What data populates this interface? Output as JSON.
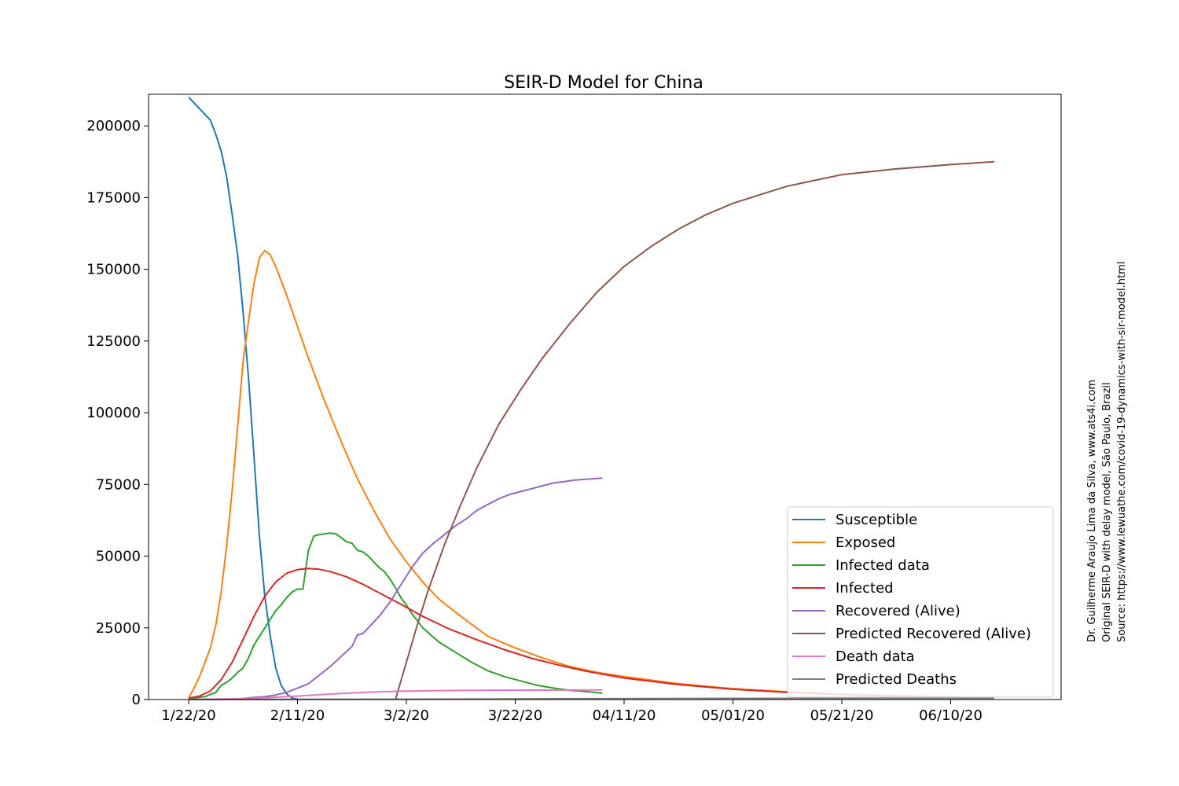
{
  "chart_data": {
    "type": "line",
    "title": "SEIR-D Model for China",
    "xlabel": "",
    "ylabel": "",
    "x_axis": {
      "type": "date",
      "start": "2020-01-22",
      "end": "2020-06-30",
      "tick_dates": [
        "2020-01-22",
        "2020-02-11",
        "2020-03-02",
        "2020-03-22",
        "2020-04-11",
        "2020-05-01",
        "2020-05-21",
        "2020-06-10"
      ],
      "tick_labels": [
        "1/22/20",
        "2/11/20",
        "3/2/20",
        "3/22/20",
        "04/11/20",
        "05/01/20",
        "05/21/20",
        "06/10/20"
      ]
    },
    "y_axis": {
      "range": [
        0,
        211000
      ],
      "ticks": [
        0,
        25000,
        50000,
        75000,
        100000,
        125000,
        150000,
        175000,
        200000
      ],
      "tick_labels": [
        "0",
        "25000",
        "50000",
        "75000",
        "100000",
        "125000",
        "150000",
        "175000",
        "200000"
      ]
    },
    "grid": false,
    "legend": {
      "placement": "lower-right"
    },
    "series": [
      {
        "name": "Susceptible",
        "color": "#1f77b4",
        "points": [
          [
            "2020-01-22",
            210000
          ],
          [
            "2020-01-24",
            206000
          ],
          [
            "2020-01-26",
            202000
          ],
          [
            "2020-01-27",
            197000
          ],
          [
            "2020-01-28",
            191000
          ],
          [
            "2020-01-29",
            182000
          ],
          [
            "2020-01-30",
            169000
          ],
          [
            "2020-01-31",
            155000
          ],
          [
            "2020-02-01",
            135000
          ],
          [
            "2020-02-02",
            112000
          ],
          [
            "2020-02-03",
            85000
          ],
          [
            "2020-02-04",
            57000
          ],
          [
            "2020-02-05",
            36000
          ],
          [
            "2020-02-06",
            22000
          ],
          [
            "2020-02-07",
            11000
          ],
          [
            "2020-02-08",
            5000
          ],
          [
            "2020-02-09",
            2000
          ],
          [
            "2020-02-10",
            500
          ],
          [
            "2020-02-11",
            200
          ]
        ]
      },
      {
        "name": "Exposed",
        "color": "#ff7f0e",
        "points": [
          [
            "2020-01-22",
            500
          ],
          [
            "2020-01-23",
            4000
          ],
          [
            "2020-01-24",
            8000
          ],
          [
            "2020-01-25",
            13000
          ],
          [
            "2020-01-26",
            18000
          ],
          [
            "2020-01-27",
            26000
          ],
          [
            "2020-01-28",
            38000
          ],
          [
            "2020-01-29",
            54000
          ],
          [
            "2020-01-30",
            73000
          ],
          [
            "2020-01-31",
            95000
          ],
          [
            "2020-02-01",
            118000
          ],
          [
            "2020-02-02",
            132000
          ],
          [
            "2020-02-03",
            145000
          ],
          [
            "2020-02-04",
            154000
          ],
          [
            "2020-02-05",
            156500
          ],
          [
            "2020-02-06",
            155000
          ],
          [
            "2020-02-07",
            151000
          ],
          [
            "2020-02-09",
            141000
          ],
          [
            "2020-02-11",
            130000
          ],
          [
            "2020-02-13",
            119000
          ],
          [
            "2020-02-16",
            104000
          ],
          [
            "2020-02-19",
            90000
          ],
          [
            "2020-02-22",
            77000
          ],
          [
            "2020-02-25",
            66000
          ],
          [
            "2020-02-28",
            56000
          ],
          [
            "2020-03-02",
            48000
          ],
          [
            "2020-03-05",
            41000
          ],
          [
            "2020-03-08",
            35000
          ],
          [
            "2020-03-12",
            29000
          ],
          [
            "2020-03-17",
            22000
          ],
          [
            "2020-03-22",
            18000
          ],
          [
            "2020-03-27",
            14500
          ],
          [
            "2020-04-01",
            11500
          ],
          [
            "2020-04-06",
            9500
          ],
          [
            "2020-04-11",
            8000
          ],
          [
            "2020-04-21",
            5500
          ],
          [
            "2020-05-01",
            3800
          ],
          [
            "2020-05-11",
            2700
          ],
          [
            "2020-05-21",
            1900
          ],
          [
            "2020-05-31",
            1400
          ],
          [
            "2020-06-10",
            1000
          ],
          [
            "2020-06-18",
            800
          ]
        ]
      },
      {
        "name": "Infected data",
        "color": "#2ca02c",
        "points": [
          [
            "2020-01-22",
            500
          ],
          [
            "2020-01-23",
            500
          ],
          [
            "2020-01-24",
            800
          ],
          [
            "2020-01-25",
            1000
          ],
          [
            "2020-01-26",
            1800
          ],
          [
            "2020-01-27",
            2500
          ],
          [
            "2020-01-28",
            5000
          ],
          [
            "2020-01-29",
            6000
          ],
          [
            "2020-01-30",
            7500
          ],
          [
            "2020-01-31",
            9500
          ],
          [
            "2020-02-01",
            11000
          ],
          [
            "2020-02-02",
            14500
          ],
          [
            "2020-02-03",
            19000
          ],
          [
            "2020-02-04",
            22000
          ],
          [
            "2020-02-05",
            25000
          ],
          [
            "2020-02-06",
            28000
          ],
          [
            "2020-02-07",
            31000
          ],
          [
            "2020-02-08",
            33000
          ],
          [
            "2020-02-09",
            35500
          ],
          [
            "2020-02-10",
            37500
          ],
          [
            "2020-02-11",
            38500
          ],
          [
            "2020-02-12",
            38500
          ],
          [
            "2020-02-13",
            52000
          ],
          [
            "2020-02-14",
            57000
          ],
          [
            "2020-02-15",
            57500
          ],
          [
            "2020-02-16",
            57800
          ],
          [
            "2020-02-17",
            58000
          ],
          [
            "2020-02-18",
            57800
          ],
          [
            "2020-02-19",
            56500
          ],
          [
            "2020-02-20",
            55000
          ],
          [
            "2020-02-21",
            54500
          ],
          [
            "2020-02-22",
            52000
          ],
          [
            "2020-02-23",
            51500
          ],
          [
            "2020-02-24",
            50000
          ],
          [
            "2020-02-25",
            48000
          ],
          [
            "2020-02-26",
            46000
          ],
          [
            "2020-02-27",
            44500
          ],
          [
            "2020-02-28",
            42000
          ],
          [
            "2020-02-29",
            39000
          ],
          [
            "2020-03-01",
            35500
          ],
          [
            "2020-03-02",
            33000
          ],
          [
            "2020-03-03",
            30000
          ],
          [
            "2020-03-04",
            27500
          ],
          [
            "2020-03-05",
            25000
          ],
          [
            "2020-03-08",
            20000
          ],
          [
            "2020-03-11",
            16500
          ],
          [
            "2020-03-14",
            13000
          ],
          [
            "2020-03-17",
            10000
          ],
          [
            "2020-03-20",
            8000
          ],
          [
            "2020-03-23",
            6500
          ],
          [
            "2020-03-26",
            5000
          ],
          [
            "2020-03-29",
            4000
          ],
          [
            "2020-04-01",
            3200
          ],
          [
            "2020-04-04",
            2800
          ],
          [
            "2020-04-07",
            2200
          ]
        ]
      },
      {
        "name": "Infected",
        "color": "#d62728",
        "points": [
          [
            "2020-01-22",
            500
          ],
          [
            "2020-01-24",
            1200
          ],
          [
            "2020-01-26",
            3000
          ],
          [
            "2020-01-28",
            7000
          ],
          [
            "2020-01-30",
            13000
          ],
          [
            "2020-02-01",
            21000
          ],
          [
            "2020-02-03",
            29000
          ],
          [
            "2020-02-05",
            36000
          ],
          [
            "2020-02-07",
            41000
          ],
          [
            "2020-02-09",
            44000
          ],
          [
            "2020-02-11",
            45300
          ],
          [
            "2020-02-13",
            45700
          ],
          [
            "2020-02-15",
            45400
          ],
          [
            "2020-02-17",
            44600
          ],
          [
            "2020-02-20",
            42800
          ],
          [
            "2020-02-23",
            40200
          ],
          [
            "2020-02-26",
            37200
          ],
          [
            "2020-03-01",
            33200
          ],
          [
            "2020-03-05",
            29000
          ],
          [
            "2020-03-10",
            24500
          ],
          [
            "2020-03-15",
            20800
          ],
          [
            "2020-03-20",
            17400
          ],
          [
            "2020-03-25",
            14400
          ],
          [
            "2020-03-30",
            12000
          ],
          [
            "2020-04-04",
            9900
          ],
          [
            "2020-04-11",
            7500
          ],
          [
            "2020-04-21",
            5200
          ],
          [
            "2020-05-01",
            3600
          ],
          [
            "2020-05-11",
            2500
          ],
          [
            "2020-05-21",
            1700
          ],
          [
            "2020-05-31",
            1200
          ],
          [
            "2020-06-10",
            800
          ],
          [
            "2020-06-18",
            600
          ]
        ]
      },
      {
        "name": "Recovered (Alive)",
        "color": "#9467bd",
        "points": [
          [
            "2020-01-22",
            0
          ],
          [
            "2020-01-31",
            200
          ],
          [
            "2020-02-03",
            700
          ],
          [
            "2020-02-05",
            1000
          ],
          [
            "2020-02-07",
            1600
          ],
          [
            "2020-02-09",
            2500
          ],
          [
            "2020-02-11",
            4000
          ],
          [
            "2020-02-13",
            5500
          ],
          [
            "2020-02-15",
            8500
          ],
          [
            "2020-02-17",
            11500
          ],
          [
            "2020-02-19",
            15000
          ],
          [
            "2020-02-21",
            18500
          ],
          [
            "2020-02-22",
            22500
          ],
          [
            "2020-02-23",
            23000
          ],
          [
            "2020-02-24",
            25000
          ],
          [
            "2020-02-26",
            29000
          ],
          [
            "2020-02-28",
            34000
          ],
          [
            "2020-03-01",
            40000
          ],
          [
            "2020-03-03",
            46000
          ],
          [
            "2020-03-05",
            51000
          ],
          [
            "2020-03-07",
            54500
          ],
          [
            "2020-03-09",
            57500
          ],
          [
            "2020-03-11",
            60500
          ],
          [
            "2020-03-13",
            63000
          ],
          [
            "2020-03-15",
            66000
          ],
          [
            "2020-03-17",
            68000
          ],
          [
            "2020-03-19",
            70000
          ],
          [
            "2020-03-21",
            71500
          ],
          [
            "2020-03-23",
            72500
          ],
          [
            "2020-03-25",
            73500
          ],
          [
            "2020-03-27",
            74500
          ],
          [
            "2020-03-29",
            75500
          ],
          [
            "2020-03-31",
            76000
          ],
          [
            "2020-04-02",
            76500
          ],
          [
            "2020-04-07",
            77200
          ]
        ]
      },
      {
        "name": "Predicted Recovered (Alive)",
        "color": "#8c564b",
        "points": [
          [
            "2020-02-29",
            0
          ],
          [
            "2020-03-02",
            13000
          ],
          [
            "2020-03-04",
            26000
          ],
          [
            "2020-03-06",
            38000
          ],
          [
            "2020-03-09",
            54000
          ],
          [
            "2020-03-12",
            68000
          ],
          [
            "2020-03-15",
            81000
          ],
          [
            "2020-03-19",
            96000
          ],
          [
            "2020-03-23",
            108000
          ],
          [
            "2020-03-27",
            119000
          ],
          [
            "2020-04-01",
            131000
          ],
          [
            "2020-04-06",
            142000
          ],
          [
            "2020-04-11",
            151000
          ],
          [
            "2020-04-16",
            158000
          ],
          [
            "2020-04-21",
            164000
          ],
          [
            "2020-04-26",
            169000
          ],
          [
            "2020-05-01",
            173000
          ],
          [
            "2020-05-06",
            176000
          ],
          [
            "2020-05-11",
            179000
          ],
          [
            "2020-05-16",
            181000
          ],
          [
            "2020-05-21",
            183000
          ],
          [
            "2020-05-31",
            185000
          ],
          [
            "2020-06-10",
            186500
          ],
          [
            "2020-06-18",
            187500
          ]
        ]
      },
      {
        "name": "Death data",
        "color": "#e377c2",
        "points": [
          [
            "2020-01-22",
            0
          ],
          [
            "2020-02-01",
            300
          ],
          [
            "2020-02-06",
            700
          ],
          [
            "2020-02-11",
            1200
          ],
          [
            "2020-02-16",
            1800
          ],
          [
            "2020-02-21",
            2300
          ],
          [
            "2020-02-26",
            2700
          ],
          [
            "2020-03-02",
            2950
          ],
          [
            "2020-03-07",
            3100
          ],
          [
            "2020-03-12",
            3170
          ],
          [
            "2020-03-22",
            3260
          ],
          [
            "2020-04-01",
            3310
          ],
          [
            "2020-04-07",
            3340
          ]
        ]
      },
      {
        "name": "Predicted Deaths",
        "color": "#7f7f7f",
        "points": [
          [
            "2020-01-22",
            0
          ],
          [
            "2020-03-01",
            100
          ],
          [
            "2020-04-01",
            300
          ],
          [
            "2020-05-01",
            400
          ],
          [
            "2020-06-18",
            450
          ]
        ]
      }
    ],
    "annotations": [
      "Dr. Guilherme Araujo Lima da Silva, www.ats4i.com",
      "Original SEIR-D with delay model, São Paulo, Brazil",
      "Source: https://www.lewuathe.com/covid-19-dynamics-with-sir-model.html"
    ]
  }
}
